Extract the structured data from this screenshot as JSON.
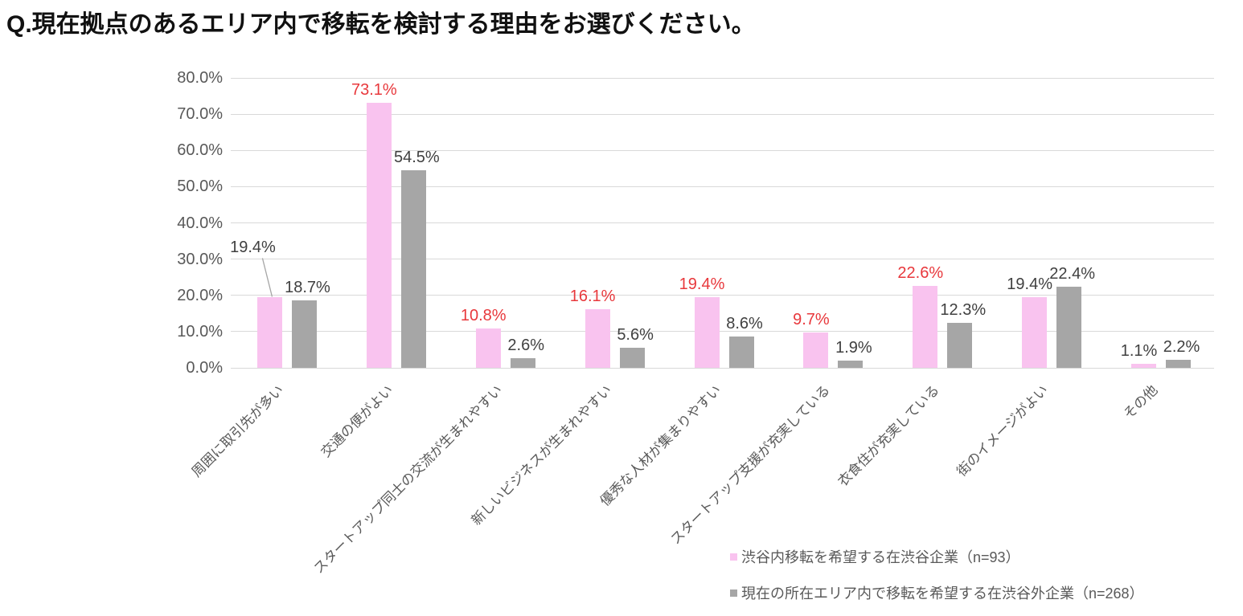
{
  "page_title": "Q.現在拠点のあるエリア内で移転を検討する理由をお選びください。",
  "chart_data": {
    "type": "bar",
    "title": "Q.現在拠点のあるエリア内で移転を検討する理由をお選びください。",
    "categories": [
      "周囲に取引先が多い",
      "交通の便がよい",
      "スタートアップ同士の交流が生まれやすい",
      "新しいビジネスが生まれやすい",
      "優秀な人材が集まりやすい",
      "スタートアップ支援が充実している",
      "衣食住が充実している",
      "街のイメージがよい",
      "その他"
    ],
    "series": [
      {
        "name": "渋谷内移転を希望する在渋谷企業（n=93）",
        "color": "#f9c3ef",
        "values": [
          19.4,
          73.1,
          10.8,
          16.1,
          19.4,
          9.7,
          22.6,
          19.4,
          1.1
        ],
        "label_highlight": [
          false,
          true,
          true,
          true,
          true,
          true,
          true,
          false,
          false
        ]
      },
      {
        "name": "現在の所在エリア内で移転を希望する在渋谷外企業（n=268）",
        "color": "#a6a6a6",
        "values": [
          18.7,
          54.5,
          2.6,
          5.6,
          8.6,
          1.9,
          12.3,
          22.4,
          2.2
        ]
      }
    ],
    "ylim": [
      0,
      80
    ],
    "ytick_step": 10,
    "ytick_suffix": "%",
    "grid": true,
    "legend_position": "bottom-right",
    "callout": {
      "series_index": 0,
      "category_index": 0
    },
    "colors": {
      "highlight_label": "#e8383c",
      "data_label": "#404040",
      "axis_label": "#595959",
      "gridline": "#d9d9d9",
      "callout_line": "#a6a6a6"
    }
  }
}
